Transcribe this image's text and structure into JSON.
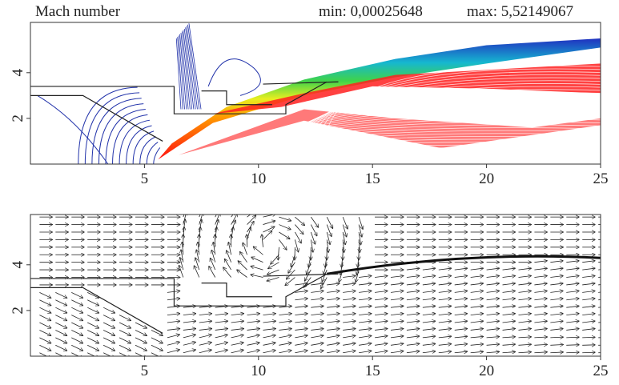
{
  "chart_data": [
    {
      "type": "contour",
      "title": "Mach number",
      "annotations": [
        "min: 0,00025648",
        "max: 5,52149067"
      ],
      "xlim": [
        0,
        25
      ],
      "ylim": [
        0,
        6.2
      ],
      "xticks": [
        5,
        10,
        15,
        20,
        25
      ],
      "yticks": [
        2,
        4
      ]
    },
    {
      "type": "streamline",
      "xlim": [
        0,
        25
      ],
      "ylim": [
        0,
        6.2
      ],
      "xticks": [
        5,
        10,
        15,
        20,
        25
      ],
      "yticks": [
        2,
        4
      ]
    }
  ]
}
